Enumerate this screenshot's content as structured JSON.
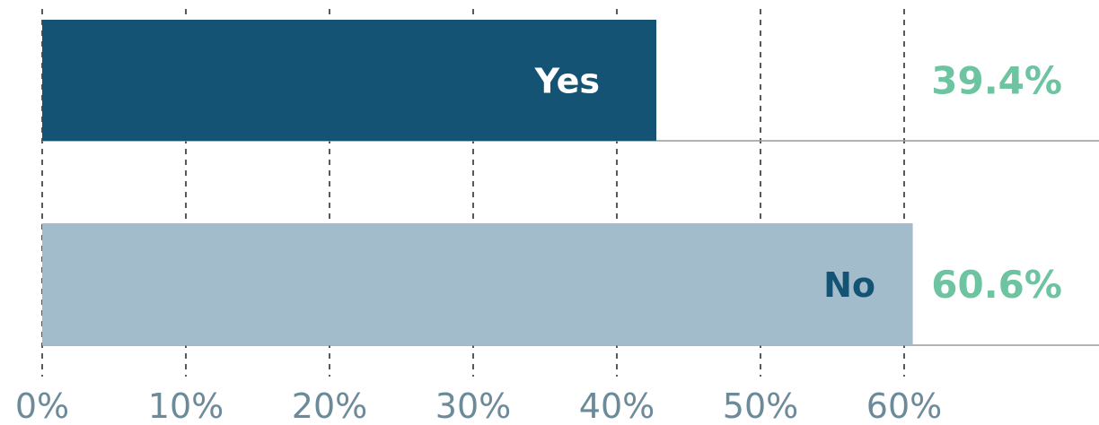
{
  "chart_data": {
    "type": "bar",
    "orientation": "horizontal",
    "categories": [
      "Yes",
      "No"
    ],
    "values": [
      39.4,
      60.6
    ],
    "value_labels": [
      "39.4%",
      "60.6%"
    ],
    "bar_colors": [
      "#145374",
      "#a3bccb"
    ],
    "category_label_colors": [
      "#ffffff",
      "#145374"
    ],
    "value_label_color": "#6cc4a1",
    "tick_color": "#6b8a9a",
    "xlim": [
      0,
      70
    ],
    "x_ticks": [
      0,
      10,
      20,
      30,
      40,
      50,
      60
    ],
    "x_tick_labels": [
      "0%",
      "10%",
      "20%",
      "30%",
      "40%",
      "50%",
      "60%"
    ],
    "grid": "vertical-dashed",
    "title": "",
    "xlabel": "",
    "ylabel": ""
  }
}
